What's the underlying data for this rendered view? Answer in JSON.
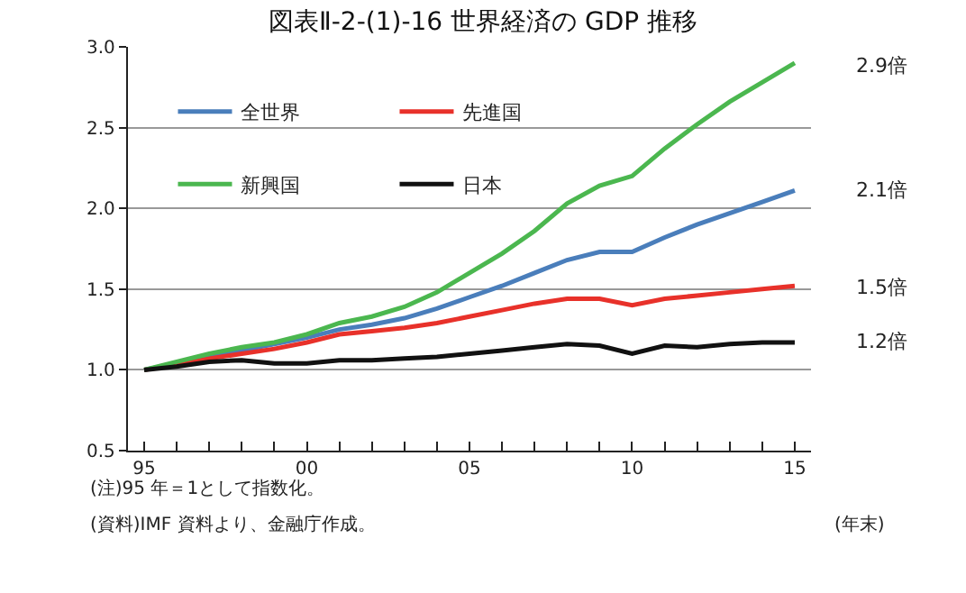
{
  "chart_data": {
    "type": "line",
    "title": "図表Ⅱ-2-(1)-16 世界経済の GDP 推移",
    "xlabel": "(年末)",
    "x": [
      1995,
      1996,
      1997,
      1998,
      1999,
      2000,
      2001,
      2002,
      2003,
      2004,
      2005,
      2006,
      2007,
      2008,
      2009,
      2010,
      2011,
      2012,
      2013,
      2014,
      2015
    ],
    "series": [
      {
        "name": "全世界",
        "color": "#4a7ebb",
        "values": [
          1.0,
          1.04,
          1.08,
          1.12,
          1.16,
          1.2,
          1.25,
          1.28,
          1.32,
          1.38,
          1.45,
          1.52,
          1.6,
          1.68,
          1.73,
          1.73,
          1.82,
          1.9,
          1.97,
          2.04,
          2.11
        ]
      },
      {
        "name": "先進国",
        "color": "#e8312a",
        "values": [
          1.0,
          1.03,
          1.07,
          1.1,
          1.13,
          1.17,
          1.22,
          1.24,
          1.26,
          1.29,
          1.33,
          1.37,
          1.41,
          1.44,
          1.44,
          1.4,
          1.44,
          1.46,
          1.48,
          1.5,
          1.52
        ]
      },
      {
        "name": "新興国",
        "color": "#4bb74f",
        "values": [
          1.0,
          1.05,
          1.1,
          1.14,
          1.17,
          1.22,
          1.29,
          1.33,
          1.39,
          1.48,
          1.6,
          1.72,
          1.86,
          2.03,
          2.14,
          2.2,
          2.37,
          2.52,
          2.66,
          2.78,
          2.9
        ]
      },
      {
        "name": "日本",
        "color": "#111111",
        "values": [
          1.0,
          1.02,
          1.05,
          1.06,
          1.04,
          1.04,
          1.06,
          1.06,
          1.07,
          1.08,
          1.1,
          1.12,
          1.14,
          1.16,
          1.15,
          1.1,
          1.15,
          1.14,
          1.16,
          1.17,
          1.17
        ]
      }
    ],
    "xlim": [
      1994.5,
      2015.5
    ],
    "xticks": [
      {
        "value": 1995,
        "label": "95"
      },
      {
        "value": 1996,
        "label": null
      },
      {
        "value": 1997,
        "label": null
      },
      {
        "value": 1998,
        "label": null
      },
      {
        "value": 1999,
        "label": null
      },
      {
        "value": 2000,
        "label": "00"
      },
      {
        "value": 2001,
        "label": null
      },
      {
        "value": 2002,
        "label": null
      },
      {
        "value": 2003,
        "label": null
      },
      {
        "value": 2004,
        "label": null
      },
      {
        "value": 2005,
        "label": "05"
      },
      {
        "value": 2006,
        "label": null
      },
      {
        "value": 2007,
        "label": null
      },
      {
        "value": 2008,
        "label": null
      },
      {
        "value": 2009,
        "label": null
      },
      {
        "value": 2010,
        "label": "10"
      },
      {
        "value": 2011,
        "label": null
      },
      {
        "value": 2012,
        "label": null
      },
      {
        "value": 2013,
        "label": null
      },
      {
        "value": 2014,
        "label": null
      },
      {
        "value": 2015,
        "label": "15"
      }
    ],
    "ylim": [
      0.5,
      3.0
    ],
    "yticks": [
      {
        "value": 0.5,
        "label": "0.5"
      },
      {
        "value": 1.0,
        "label": "1.0"
      },
      {
        "value": 1.5,
        "label": "1.5"
      },
      {
        "value": 2.0,
        "label": "2.0"
      },
      {
        "value": 2.5,
        "label": "2.5"
      },
      {
        "value": 3.0,
        "label": "3.0"
      }
    ],
    "grid": "y",
    "legend": "top left",
    "marker": "none",
    "line_style": "solid",
    "annotations": [
      "2.9倍",
      "2.1倍",
      "1.5倍",
      "1.2倍",
      "(注)95 年＝1として指数化。",
      "(資料)IMF 資料より、金融庁作成。"
    ]
  }
}
